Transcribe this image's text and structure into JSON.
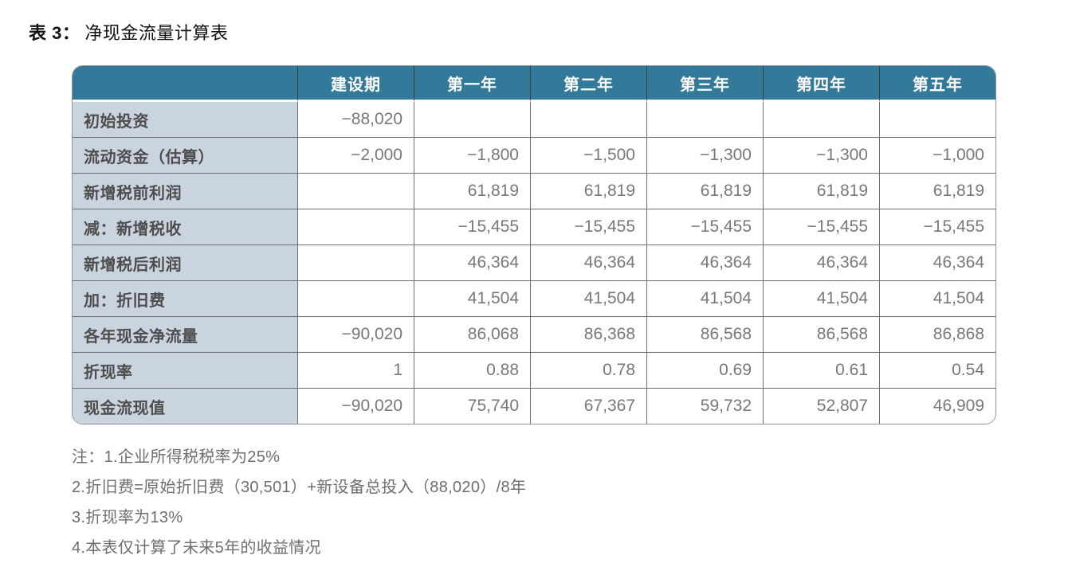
{
  "title": {
    "prefix": "表 3：",
    "text": "净现金流量计算表"
  },
  "table": {
    "columns": [
      "",
      "建设期",
      "第一年",
      "第二年",
      "第三年",
      "第四年",
      "第五年"
    ],
    "rows": [
      {
        "label": "初始投资",
        "values": [
          "−88,020",
          "",
          "",
          "",
          "",
          ""
        ]
      },
      {
        "label": "流动资金（估算）",
        "values": [
          "−2,000",
          "−1,800",
          "−1,500",
          "−1,300",
          "−1,300",
          "−1,000"
        ]
      },
      {
        "label": "新增税前利润",
        "values": [
          "",
          "61,819",
          "61,819",
          "61,819",
          "61,819",
          "61,819"
        ]
      },
      {
        "label": "减：新增税收",
        "values": [
          "",
          "−15,455",
          "−15,455",
          "−15,455",
          "−15,455",
          "−15,455"
        ]
      },
      {
        "label": "新增税后利润",
        "values": [
          "",
          "46,364",
          "46,364",
          "46,364",
          "46,364",
          "46,364"
        ]
      },
      {
        "label": "加：折旧费",
        "values": [
          "",
          "41,504",
          "41,504",
          "41,504",
          "41,504",
          "41,504"
        ]
      },
      {
        "label": "各年现金净流量",
        "values": [
          "−90,020",
          "86,068",
          "86,368",
          "86,568",
          "86,568",
          "86,868"
        ]
      },
      {
        "label": "折现率",
        "values": [
          "1",
          "0.88",
          "0.78",
          "0.69",
          "0.61",
          "0.54"
        ]
      },
      {
        "label": "现金流现值",
        "values": [
          "−90,020",
          "75,740",
          "67,367",
          "59,732",
          "52,807",
          "46,909"
        ]
      }
    ]
  },
  "notes": [
    "注：1.企业所得税税率为25%",
    "2.折旧费=原始折旧费（30,501）+新设备总投入（88,020）/8年",
    "3.折现率为13%",
    "4.本表仅计算了未来5年的收益情况"
  ],
  "colors": {
    "header_bg": "#33799A",
    "header_text": "#FFFFFF",
    "label_column_bg": "#CAD4DF",
    "grid_border": "#6F6F6F",
    "value_text": "#787878",
    "label_text": "#4D4D4D"
  }
}
